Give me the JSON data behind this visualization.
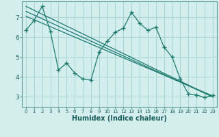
{
  "background_color": "#d4eeee",
  "grid_color": "#a8d4d4",
  "line_color": "#1a7a6e",
  "marker_color": "#1a7a6e",
  "xlabel": "Humidex (Indice chaleur)",
  "xlim": [
    -0.5,
    23.5
  ],
  "ylim": [
    2.5,
    7.8
  ],
  "yticks": [
    3,
    4,
    5,
    6,
    7
  ],
  "xticks": [
    0,
    1,
    2,
    3,
    4,
    5,
    6,
    7,
    8,
    9,
    10,
    11,
    12,
    13,
    14,
    15,
    16,
    17,
    18,
    19,
    20,
    21,
    22,
    23
  ],
  "zigzag_x": [
    0,
    1,
    2,
    3,
    4,
    5,
    6,
    7,
    8,
    9,
    10,
    11,
    12,
    13,
    14,
    15,
    16,
    17,
    18,
    19,
    20,
    21,
    22,
    23
  ],
  "zigzag_y": [
    6.35,
    6.85,
    7.55,
    6.3,
    4.35,
    4.7,
    4.2,
    3.9,
    3.85,
    5.25,
    5.8,
    6.25,
    6.45,
    7.25,
    6.7,
    6.35,
    6.5,
    5.5,
    5.0,
    3.9,
    3.15,
    3.1,
    2.97,
    3.07
  ],
  "line1_x": [
    0,
    23
  ],
  "line1_y": [
    7.55,
    3.0
  ],
  "line2_x": [
    0,
    23
  ],
  "line2_y": [
    7.3,
    3.0
  ],
  "line3_x": [
    0,
    23
  ],
  "line3_y": [
    7.05,
    3.05
  ]
}
